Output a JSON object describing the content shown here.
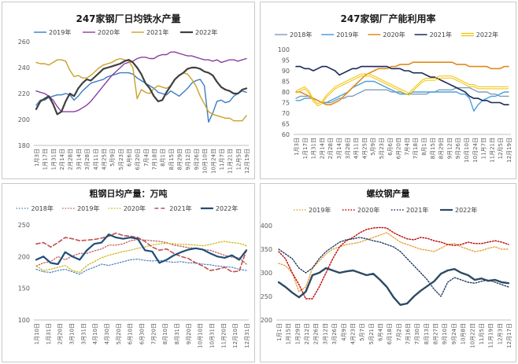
{
  "chart_data": [
    {
      "type": "line",
      "title": "247家钢厂日均铁水产量",
      "ylim": [
        180,
        260
      ],
      "yticks": [
        "180",
        "200",
        "220",
        "240",
        "260"
      ],
      "grid": false,
      "legend_position": "top",
      "x_tick_labels": [
        "1月3日",
        "1月17日",
        "1月31日",
        "2月14日",
        "2月28日",
        "3月14日",
        "3月28日",
        "4月11日",
        "4月25日",
        "5月9日",
        "5月23日",
        "6月6日",
        "6月20日",
        "7月4日",
        "7月18日",
        "8月1日",
        "8月15日",
        "8月29日",
        "9月12日",
        "9月26日",
        "10月10日",
        "10月24日",
        "11月7日",
        "11月21日",
        "12月5日",
        "12月19日"
      ],
      "series": [
        {
          "name": "2019年",
          "color": "#3a7cc4",
          "dash": "solid",
          "width": 1.4,
          "values": [
            211,
            215,
            215,
            217,
            218,
            219,
            219,
            220,
            219,
            215,
            218,
            222,
            225,
            228,
            229,
            230,
            231,
            233,
            234,
            235,
            236,
            236,
            236,
            235,
            232,
            230,
            228,
            226,
            224,
            221,
            220,
            219,
            222,
            220,
            218,
            221,
            224,
            228,
            230,
            231,
            226,
            198,
            205,
            214,
            215,
            213,
            214,
            218,
            220,
            222,
            221
          ]
        },
        {
          "name": "2020年",
          "color": "#8a3fa4",
          "dash": "solid",
          "width": 1.4,
          "values": [
            222,
            221,
            220,
            218,
            215,
            210,
            206,
            206,
            206,
            206,
            207,
            209,
            211,
            214,
            218,
            222,
            226,
            230,
            234,
            237,
            240,
            243,
            244,
            245,
            247,
            248,
            248,
            247,
            247,
            249,
            250,
            250,
            252,
            252,
            251,
            250,
            249,
            249,
            248,
            247,
            246,
            246,
            245,
            246,
            244,
            245,
            246,
            246,
            245,
            246,
            247
          ]
        },
        {
          "name": "2021年",
          "color": "#c9a227",
          "dash": "solid",
          "width": 1.4,
          "values": [
            244,
            243,
            243,
            242,
            244,
            246,
            246,
            245,
            238,
            233,
            234,
            232,
            232,
            234,
            237,
            240,
            242,
            243,
            244,
            246,
            247,
            246,
            245,
            240,
            216,
            223,
            221,
            220,
            224,
            226,
            225,
            224,
            226,
            231,
            234,
            236,
            235,
            231,
            226,
            218,
            212,
            206,
            204,
            203,
            202,
            201,
            201,
            199,
            199,
            199,
            203
          ]
        },
        {
          "name": "2022年",
          "color": "#404040",
          "dash": "solid",
          "width": 2.2,
          "values": [
            208,
            214,
            216,
            218,
            212,
            204,
            206,
            214,
            220,
            218,
            224,
            228,
            231,
            230,
            233,
            236,
            239,
            240,
            241,
            242,
            243,
            245,
            246,
            244,
            240,
            235,
            228,
            224,
            218,
            214,
            215,
            221,
            226,
            231,
            234,
            236,
            239,
            240,
            240,
            239,
            237,
            236,
            234,
            229,
            225,
            223,
            222,
            220,
            220,
            223,
            224
          ]
        }
      ]
    },
    {
      "type": "line",
      "title": "247家钢厂产能利用率",
      "ylim": [
        60,
        100
      ],
      "yticks": [
        "60",
        "65",
        "70",
        "75",
        "80",
        "85",
        "90",
        "95",
        "100"
      ],
      "grid": false,
      "legend_position": "top",
      "x_tick_labels": [
        "1月3日",
        "1月17日",
        "1月31日",
        "2月14日",
        "2月28日",
        "3月14日",
        "3月28日",
        "4月11日",
        "4月25日",
        "5月9日",
        "5月23日",
        "6月6日",
        "6月20日",
        "7月4日",
        "7月18日",
        "8月1日",
        "8月15日",
        "8月29日",
        "9月12日",
        "9月26日",
        "10月10日",
        "10月24日",
        "11月7日",
        "11月21日",
        "12月5日",
        "12月19日"
      ],
      "series": [
        {
          "name": "2018年",
          "color": "#7f9db9",
          "dash": "solid",
          "width": 1.4,
          "values": [
            77,
            78,
            78,
            78,
            77,
            76,
            75,
            75,
            75,
            76,
            77,
            77,
            78,
            78,
            79,
            80,
            81,
            81,
            81,
            81,
            81,
            81,
            80,
            80,
            80,
            79,
            79,
            79,
            79,
            79,
            79,
            80,
            80,
            81,
            81,
            81,
            81,
            82,
            82,
            82,
            82,
            81,
            80,
            80,
            80,
            79,
            79,
            78,
            78,
            78
          ]
        },
        {
          "name": "2019年",
          "color": "#4aa0d8",
          "dash": "solid",
          "width": 1.4,
          "values": [
            76,
            76,
            77,
            77,
            77,
            76,
            75,
            75,
            76,
            77,
            78,
            79,
            80,
            82,
            83,
            84,
            85,
            85,
            85,
            84,
            83,
            82,
            81,
            80,
            79,
            79,
            79,
            80,
            80,
            80,
            80,
            80,
            80,
            80,
            80,
            80,
            80,
            80,
            79,
            79,
            77,
            71,
            74,
            76,
            77,
            78,
            78,
            79,
            80,
            80
          ]
        },
        {
          "name": "2020年",
          "color": "#e08a1e",
          "dash": "solid",
          "width": 1.6,
          "values": [
            80,
            80,
            79,
            78,
            77,
            76,
            75,
            74,
            74,
            75,
            76,
            78,
            80,
            82,
            84,
            86,
            88,
            89,
            90,
            91,
            91,
            91,
            92,
            92,
            93,
            93,
            93,
            94,
            94,
            94,
            94,
            94,
            94,
            94,
            94,
            94,
            94,
            93,
            93,
            93,
            92,
            92,
            92,
            92,
            92,
            91,
            91,
            91,
            92,
            92
          ]
        },
        {
          "name": "2021年",
          "color": "#1a2a5a",
          "dash": "solid",
          "width": 1.6,
          "values": [
            92,
            92,
            91,
            91,
            90,
            91,
            92,
            92,
            91,
            90,
            88,
            89,
            90,
            91,
            91,
            92,
            92,
            92,
            92,
            92,
            92,
            92,
            91,
            91,
            91,
            90,
            90,
            89,
            89,
            89,
            88,
            87,
            87,
            86,
            85,
            84,
            83,
            82,
            81,
            80,
            78,
            77,
            77,
            76,
            76,
            75,
            75,
            75,
            74,
            74
          ]
        },
        {
          "name": "2022年",
          "color": "#f2c200",
          "dash": "double",
          "width": 1.4,
          "values": [
            80,
            81,
            82,
            80,
            76,
            74,
            75,
            78,
            80,
            82,
            83,
            84,
            85,
            86,
            87,
            88,
            88,
            88,
            87,
            86,
            85,
            84,
            83,
            82,
            81,
            80,
            79,
            81,
            83,
            85,
            86,
            86,
            86,
            87,
            87,
            87,
            87,
            86,
            85,
            84,
            83,
            83,
            82,
            82,
            82,
            82,
            82,
            82,
            82,
            82
          ]
        }
      ]
    },
    {
      "type": "line",
      "title": "粗钢日均产量：万吨",
      "ylim": [
        100,
        250
      ],
      "yticks": [
        "100",
        "150",
        "200",
        "250"
      ],
      "grid": false,
      "legend_position": "top",
      "x_tick_labels": [
        "1月10日",
        "1月31日",
        "2月20日",
        "3月10日",
        "3月31日",
        "4月10日",
        "4月30日",
        "5月20日",
        "6月10日",
        "6月30日",
        "7月20日",
        "8月10日",
        "8月31日",
        "9月20日",
        "10月10日",
        "10月31日",
        "11月20日",
        "12月10日",
        "12月31日"
      ],
      "series": [
        {
          "name": "2018年",
          "color": "#4a7ec4",
          "dash": "dot",
          "width": 1.2,
          "values": [
            180,
            176,
            175,
            178,
            180,
            176,
            172,
            179,
            183,
            188,
            186,
            189,
            192,
            195,
            196,
            194,
            193,
            194,
            192,
            191,
            192,
            190,
            190,
            188,
            187,
            185,
            184,
            183,
            180,
            178
          ]
        },
        {
          "name": "2019年",
          "color": "#c0504d",
          "dash": "dot",
          "width": 1.2,
          "values": [
            185,
            190,
            192,
            200,
            195,
            201,
            205,
            205,
            209,
            212,
            218,
            218,
            220,
            225,
            227,
            226,
            225,
            224,
            222,
            218,
            216,
            214,
            213,
            211,
            210,
            206,
            202,
            199,
            198,
            188
          ]
        },
        {
          "name": "2020年",
          "color": "#c9b000",
          "dash": "dot",
          "width": 1.2,
          "values": [
            185,
            178,
            180,
            183,
            186,
            178,
            175,
            186,
            192,
            198,
            202,
            205,
            208,
            210,
            213,
            215,
            218,
            220,
            221,
            220,
            219,
            219,
            218,
            217,
            219,
            222,
            224,
            222,
            221,
            217
          ]
        },
        {
          "name": "2021年",
          "color": "#c0504d",
          "dash": "dash",
          "width": 1.6,
          "values": [
            220,
            222,
            215,
            222,
            230,
            228,
            225,
            226,
            227,
            229,
            232,
            237,
            233,
            232,
            230,
            224,
            215,
            210,
            212,
            205,
            200,
            197,
            190,
            185,
            178,
            180,
            183,
            176,
            177,
            210
          ]
        },
        {
          "name": "2022年",
          "color": "#1f4e79",
          "dash": "solid",
          "width": 2.2,
          "values": [
            195,
            200,
            190,
            188,
            207,
            200,
            195,
            210,
            220,
            222,
            235,
            230,
            228,
            230,
            228,
            210,
            208,
            190,
            195,
            202,
            207,
            211,
            213,
            211,
            205,
            200,
            198,
            202,
            195,
            210
          ]
        }
      ]
    },
    {
      "type": "line",
      "title": "螺纹钢产量",
      "ylim": [
        200,
        400
      ],
      "yticks": [
        "200",
        "250",
        "300",
        "350",
        "400"
      ],
      "grid": false,
      "legend_position": "top",
      "x_tick_labels": [
        "1月1日",
        "1月15日",
        "1月29日",
        "2月12日",
        "2月26日",
        "3月12日",
        "3月26日",
        "4月9日",
        "4月23日",
        "5月7日",
        "5月21日",
        "6月4日",
        "6月18日",
        "7月2日",
        "7月16日",
        "7月30日",
        "8月13日",
        "8月27日",
        "9月10日",
        "9月24日",
        "10月8日",
        "10月22日",
        "11月5日",
        "11月19日",
        "12月3日",
        "12月17日"
      ],
      "series": [
        {
          "name": "2019年",
          "color": "#e6a23c",
          "dash": "dot",
          "width": 1.4,
          "values": [
            320,
            315,
            300,
            260,
            270,
            310,
            325,
            340,
            350,
            355,
            360,
            362,
            365,
            370,
            375,
            380,
            385,
            375,
            365,
            360,
            355,
            350,
            348,
            345,
            352,
            360,
            362,
            355,
            350,
            345,
            347,
            352,
            355,
            350,
            350
          ]
        },
        {
          "name": "2020年",
          "color": "#c00000",
          "dash": "dot",
          "width": 1.4,
          "values": [
            345,
            330,
            300,
            275,
            245,
            245,
            270,
            300,
            330,
            355,
            368,
            375,
            385,
            392,
            395,
            396,
            395,
            385,
            378,
            372,
            370,
            375,
            373,
            368,
            365,
            360,
            358,
            360,
            365,
            362,
            362,
            365,
            368,
            365,
            360
          ]
        },
        {
          "name": "2021年",
          "color": "#1f3864",
          "dash": "dot",
          "width": 1.4,
          "values": [
            350,
            340,
            330,
            310,
            300,
            310,
            330,
            345,
            355,
            365,
            370,
            372,
            375,
            372,
            368,
            365,
            360,
            355,
            345,
            330,
            315,
            300,
            285,
            265,
            250,
            280,
            290,
            285,
            280,
            278,
            282,
            285,
            280,
            275,
            270
          ]
        },
        {
          "name": "2022年",
          "color": "#2e4a62",
          "dash": "solid",
          "width": 2.4,
          "values": [
            280,
            270,
            258,
            248,
            260,
            295,
            300,
            310,
            305,
            300,
            303,
            305,
            300,
            295,
            298,
            285,
            270,
            248,
            232,
            235,
            250,
            262,
            272,
            282,
            298,
            305,
            308,
            300,
            295,
            285,
            288,
            283,
            285,
            280,
            278
          ]
        }
      ]
    }
  ]
}
